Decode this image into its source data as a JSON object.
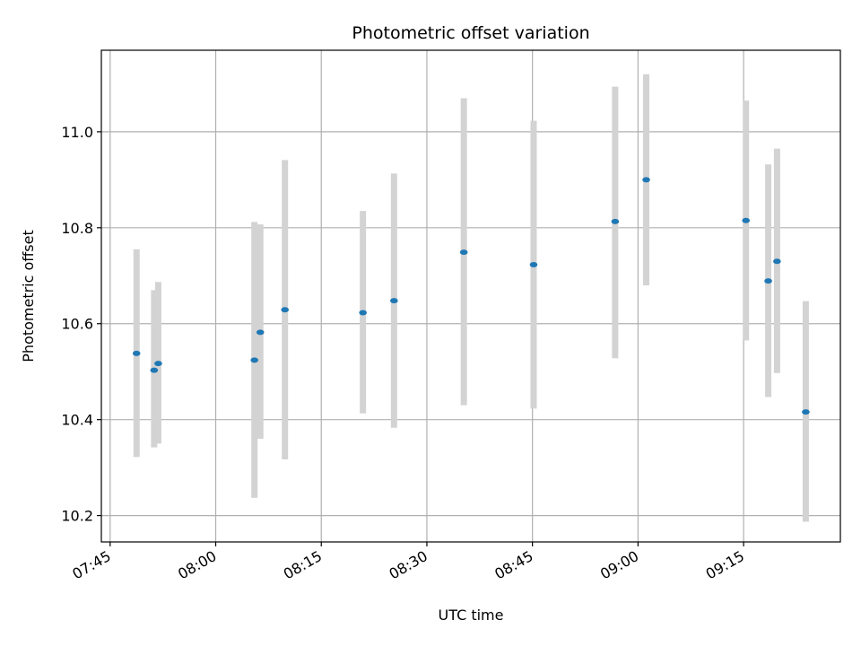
{
  "chart_data": {
    "type": "scatter",
    "title": "Photometric offset variation",
    "xlabel": "UTC time",
    "ylabel": "Photometric offset",
    "grid": true,
    "x_tick_labels": [
      "07:45",
      "08:00",
      "08:15",
      "08:30",
      "08:45",
      "09:00",
      "09:15"
    ],
    "x_ticks": [
      "07:45",
      "08:00",
      "08:15",
      "08:30",
      "08:45",
      "09:00",
      "09:15"
    ],
    "xlim": [
      "07:43:45",
      "09:28:45"
    ],
    "y_tick_labels": [
      "10.2",
      "10.4",
      "10.6",
      "10.8",
      "11.0"
    ],
    "y_ticks": [
      10.2,
      10.4,
      10.6,
      10.8,
      11.0
    ],
    "ylim": [
      10.145,
      11.17
    ],
    "points": [
      {
        "x": "07:48:45",
        "y": 10.538,
        "lo": 10.322,
        "hi": 10.755
      },
      {
        "x": "07:51:15",
        "y": 10.503,
        "lo": 10.342,
        "hi": 10.67
      },
      {
        "x": "07:51:50",
        "y": 10.517,
        "lo": 10.35,
        "hi": 10.687
      },
      {
        "x": "08:05:30",
        "y": 10.524,
        "lo": 10.237,
        "hi": 10.812
      },
      {
        "x": "08:06:20",
        "y": 10.582,
        "lo": 10.36,
        "hi": 10.807
      },
      {
        "x": "08:09:50",
        "y": 10.629,
        "lo": 10.317,
        "hi": 10.941
      },
      {
        "x": "08:20:55",
        "y": 10.623,
        "lo": 10.413,
        "hi": 10.835
      },
      {
        "x": "08:25:20",
        "y": 10.648,
        "lo": 10.383,
        "hi": 10.913
      },
      {
        "x": "08:35:15",
        "y": 10.749,
        "lo": 10.43,
        "hi": 11.07
      },
      {
        "x": "08:45:10",
        "y": 10.723,
        "lo": 10.423,
        "hi": 11.023
      },
      {
        "x": "08:56:45",
        "y": 10.813,
        "lo": 10.528,
        "hi": 11.094
      },
      {
        "x": "09:01:10",
        "y": 10.9,
        "lo": 10.68,
        "hi": 11.12
      },
      {
        "x": "09:15:20",
        "y": 10.815,
        "lo": 10.565,
        "hi": 11.065
      },
      {
        "x": "09:18:30",
        "y": 10.689,
        "lo": 10.447,
        "hi": 10.932
      },
      {
        "x": "09:19:45",
        "y": 10.73,
        "lo": 10.497,
        "hi": 10.965
      },
      {
        "x": "09:23:50",
        "y": 10.416,
        "lo": 10.187,
        "hi": 10.647
      }
    ],
    "colors": {
      "point": "#1f77b4",
      "errorbar": "#d3d3d3",
      "grid": "#b0b0b0",
      "axis": "#000000"
    }
  }
}
